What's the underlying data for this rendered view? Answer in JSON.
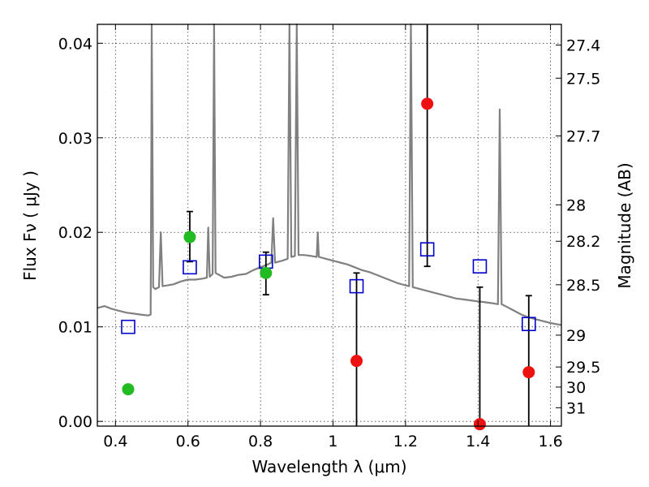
{
  "chart_data": {
    "type": "scatter",
    "xlabel": "Wavelength  λ (μm)",
    "ylabel": "Flux  Fν  ( μJy )",
    "y2label": "Magnitude (AB)",
    "xlim": [
      0.35,
      1.63
    ],
    "ylim": [
      -0.0005,
      0.042
    ],
    "grid": true,
    "x_ticks": [
      "0.4",
      "0.6",
      "0.8",
      "1",
      "1.2",
      "1.4",
      "1.6"
    ],
    "y_ticks": [
      "0.00",
      "0.01",
      "0.02",
      "0.03",
      "0.04"
    ],
    "mag_ticks": [
      "27.4",
      "27.5",
      "27.7",
      "28",
      "28.2",
      "28.5",
      "29",
      "29.5",
      "30",
      "31"
    ],
    "colors": {
      "spectrum": "#808080",
      "green_points": "#22bb22",
      "red_points": "#ee1111",
      "model_boxes": "#0000cc",
      "errorbars": "#000000"
    },
    "series": [
      {
        "marker": "green-circle",
        "points": [
          {
            "x": 0.435,
            "y": 0.0034,
            "ylo": 0.0034,
            "yhi": 0.0034
          },
          {
            "x": 0.605,
            "y": 0.0195,
            "ylo": 0.0169,
            "yhi": 0.0222
          },
          {
            "x": 0.815,
            "y": 0.0157,
            "ylo": 0.0134,
            "yhi": 0.0179
          }
        ]
      },
      {
        "marker": "red-circle",
        "points": [
          {
            "x": 1.065,
            "y": 0.0064,
            "ylo": -0.0005,
            "yhi": 0.0157
          },
          {
            "x": 1.26,
            "y": 0.0336,
            "ylo": 0.0164,
            "yhi": 0.042
          },
          {
            "x": 1.405,
            "y": -0.0003,
            "ylo": -0.0005,
            "yhi": 0.0142
          },
          {
            "x": 1.54,
            "y": 0.0052,
            "ylo": -0.0005,
            "yhi": 0.0133
          }
        ]
      },
      {
        "marker": "blue-open-square",
        "points": [
          {
            "x": 0.435,
            "y": 0.01
          },
          {
            "x": 0.605,
            "y": 0.0163
          },
          {
            "x": 0.815,
            "y": 0.0169
          },
          {
            "x": 1.065,
            "y": 0.0143
          },
          {
            "x": 1.26,
            "y": 0.0182
          },
          {
            "x": 1.405,
            "y": 0.0164
          },
          {
            "x": 1.54,
            "y": 0.0103
          }
        ]
      },
      {
        "marker": "gray-line",
        "points": [
          [
            0.35,
            0.012
          ],
          [
            0.37,
            0.0122
          ],
          [
            0.39,
            0.0119
          ],
          [
            0.41,
            0.0117
          ],
          [
            0.43,
            0.0115
          ],
          [
            0.45,
            0.0114
          ],
          [
            0.47,
            0.0113
          ],
          [
            0.49,
            0.0112
          ],
          [
            0.497,
            0.0113
          ],
          [
            0.499,
            0.03
          ],
          [
            0.5,
            0.042
          ],
          [
            0.502,
            0.03
          ],
          [
            0.504,
            0.0142
          ],
          [
            0.51,
            0.014
          ],
          [
            0.52,
            0.0142
          ],
          [
            0.525,
            0.02
          ],
          [
            0.53,
            0.0143
          ],
          [
            0.56,
            0.0145
          ],
          [
            0.58,
            0.0148
          ],
          [
            0.6,
            0.015
          ],
          [
            0.62,
            0.015
          ],
          [
            0.64,
            0.0151
          ],
          [
            0.652,
            0.0152
          ],
          [
            0.656,
            0.0205
          ],
          [
            0.66,
            0.0153
          ],
          [
            0.668,
            0.0156
          ],
          [
            0.672,
            0.042
          ],
          [
            0.676,
            0.0157
          ],
          [
            0.7,
            0.0152
          ],
          [
            0.72,
            0.0153
          ],
          [
            0.74,
            0.0155
          ],
          [
            0.76,
            0.0156
          ],
          [
            0.78,
            0.016
          ],
          [
            0.8,
            0.0163
          ],
          [
            0.82,
            0.0166
          ],
          [
            0.83,
            0.0168
          ],
          [
            0.835,
            0.0215
          ],
          [
            0.84,
            0.0168
          ],
          [
            0.86,
            0.017
          ],
          [
            0.875,
            0.0172
          ],
          [
            0.88,
            0.042
          ],
          [
            0.885,
            0.0174
          ],
          [
            0.895,
            0.0175
          ],
          [
            0.9,
            0.042
          ],
          [
            0.905,
            0.0176
          ],
          [
            0.92,
            0.0176
          ],
          [
            0.94,
            0.0175
          ],
          [
            0.955,
            0.0174
          ],
          [
            0.958,
            0.02
          ],
          [
            0.961,
            0.0174
          ],
          [
            0.98,
            0.0172
          ],
          [
            1.0,
            0.017
          ],
          [
            1.02,
            0.0168
          ],
          [
            1.04,
            0.0166
          ],
          [
            1.06,
            0.0163
          ],
          [
            1.08,
            0.016
          ],
          [
            1.1,
            0.0158
          ],
          [
            1.12,
            0.0155
          ],
          [
            1.14,
            0.0152
          ],
          [
            1.16,
            0.0149
          ],
          [
            1.18,
            0.0146
          ],
          [
            1.2,
            0.0144
          ],
          [
            1.21,
            0.0143
          ],
          [
            1.215,
            0.042
          ],
          [
            1.22,
            0.0142
          ],
          [
            1.24,
            0.014
          ],
          [
            1.26,
            0.0138
          ],
          [
            1.28,
            0.0136
          ],
          [
            1.3,
            0.0134
          ],
          [
            1.32,
            0.0132
          ],
          [
            1.34,
            0.013
          ],
          [
            1.36,
            0.0129
          ],
          [
            1.38,
            0.0128
          ],
          [
            1.4,
            0.0127
          ],
          [
            1.42,
            0.0126
          ],
          [
            1.44,
            0.0125
          ],
          [
            1.455,
            0.0124
          ],
          [
            1.46,
            0.033
          ],
          [
            1.465,
            0.0124
          ],
          [
            1.48,
            0.0121
          ],
          [
            1.5,
            0.0117
          ],
          [
            1.52,
            0.0113
          ],
          [
            1.54,
            0.011
          ],
          [
            1.56,
            0.0108
          ],
          [
            1.58,
            0.0106
          ],
          [
            1.6,
            0.0104
          ],
          [
            1.63,
            0.0102
          ]
        ]
      }
    ]
  }
}
